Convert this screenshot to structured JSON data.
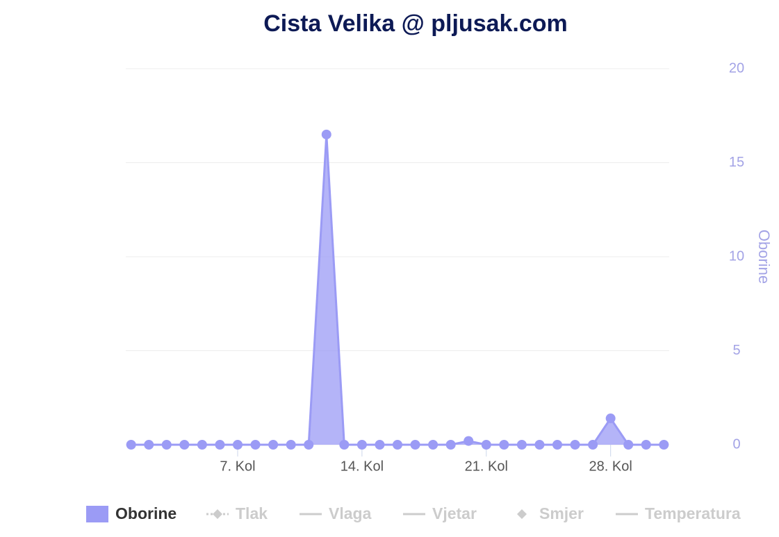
{
  "chart_data": {
    "type": "area",
    "title": "Cista Velika @ pljusak.com",
    "x": [
      1,
      2,
      3,
      4,
      5,
      6,
      7,
      8,
      9,
      10,
      11,
      12,
      13,
      14,
      15,
      16,
      17,
      18,
      19,
      20,
      21,
      22,
      23,
      24,
      25,
      26,
      27,
      28,
      29,
      30,
      31
    ],
    "xlim": [
      0.7,
      31.3
    ],
    "xticks": [
      {
        "value": 7,
        "label": "7. Kol"
      },
      {
        "value": 14,
        "label": "14. Kol"
      },
      {
        "value": 21,
        "label": "21. Kol"
      },
      {
        "value": 28,
        "label": "28. Kol"
      }
    ],
    "series": [
      {
        "name": "Oborine",
        "color": "#9b9bf5",
        "axis": "y2",
        "values": [
          0,
          0,
          0,
          0,
          0,
          0,
          0,
          0,
          0,
          0,
          0,
          16.5,
          0,
          0,
          0,
          0,
          0,
          0,
          0,
          0.2,
          0,
          0,
          0,
          0,
          0,
          0,
          0,
          1.4,
          0,
          0,
          0
        ]
      }
    ],
    "y2label": "Oborine",
    "y2lim": [
      0,
      20
    ],
    "y2ticks": [
      0,
      5,
      10,
      15,
      20
    ],
    "grid": true,
    "legend": [
      {
        "name": "Oborine",
        "visible": true,
        "symbol": "area"
      },
      {
        "name": "Tlak",
        "visible": false,
        "symbol": "dash-diamond"
      },
      {
        "name": "Vlaga",
        "visible": false,
        "symbol": "line"
      },
      {
        "name": "Vjetar",
        "visible": false,
        "symbol": "line"
      },
      {
        "name": "Smjer",
        "visible": false,
        "symbol": "diamond"
      },
      {
        "name": "Temperatura",
        "visible": false,
        "symbol": "line"
      }
    ],
    "legend_position": "bottom"
  }
}
